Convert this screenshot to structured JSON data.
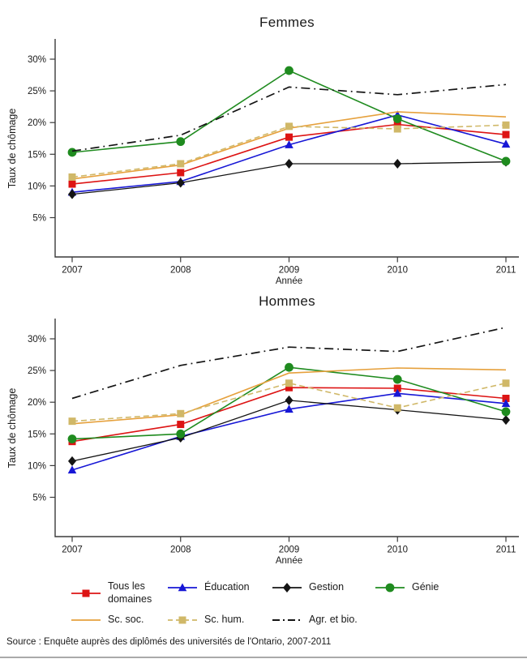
{
  "source_note": "Source : Enquête auprès des diplômés des universités de l'Ontario, 2007-2011",
  "colors": {
    "red": "#dd1414",
    "blue": "#1717d6",
    "black": "#141414",
    "green": "#1f8b1f",
    "orange": "#e6a13d",
    "tan": "#d0b868",
    "axis": "#3a3a3a"
  },
  "chart_data": [
    {
      "type": "line",
      "title": "Femmes",
      "xlabel": "Année",
      "ylabel": "Taux de chômage",
      "x": [
        2007,
        2008,
        2009,
        2010,
        2011
      ],
      "y_ticks": [
        5,
        10,
        15,
        20,
        25,
        30
      ],
      "y_tick_suffix": "%",
      "ylim": [
        0,
        33
      ],
      "grid": false,
      "legend_position": "bottom",
      "series": [
        {
          "name": "Tous les domaines",
          "color_key": "red",
          "marker": "square",
          "dash": "solid",
          "values": [
            10.3,
            12.1,
            17.7,
            19.7,
            18.1
          ]
        },
        {
          "name": "Éducation",
          "color_key": "blue",
          "marker": "triangle",
          "dash": "solid",
          "values": [
            9.0,
            10.7,
            16.5,
            21.2,
            16.6
          ]
        },
        {
          "name": "Gestion",
          "color_key": "black",
          "marker": "diamond",
          "dash": "solid",
          "values": [
            8.7,
            10.5,
            13.5,
            13.5,
            13.8
          ]
        },
        {
          "name": "Génie",
          "color_key": "green",
          "marker": "circle",
          "dash": "solid",
          "values": [
            15.3,
            17.0,
            28.2,
            20.6,
            13.9
          ]
        },
        {
          "name": "Sc. soc.",
          "color_key": "orange",
          "marker": "none",
          "dash": "solid",
          "values": [
            11.1,
            13.3,
            19.1,
            21.7,
            20.9
          ]
        },
        {
          "name": "Sc. hum.",
          "color_key": "tan",
          "marker": "square",
          "dash": "dashed",
          "values": [
            11.4,
            13.5,
            19.4,
            19.0,
            19.6
          ]
        },
        {
          "name": "Agr. et bio.",
          "color_key": "black",
          "marker": "none",
          "dash": "dashdot",
          "values": [
            15.5,
            18.0,
            25.6,
            24.4,
            26.0
          ]
        }
      ]
    },
    {
      "type": "line",
      "title": "Hommes",
      "xlabel": "Année",
      "ylabel": "Taux de chômage",
      "x": [
        2007,
        2008,
        2009,
        2010,
        2011
      ],
      "y_ticks": [
        5,
        10,
        15,
        20,
        25,
        30
      ],
      "y_tick_suffix": "%",
      "ylim": [
        0,
        33
      ],
      "grid": false,
      "legend_position": "bottom",
      "series": [
        {
          "name": "Tous les domaines",
          "color_key": "red",
          "marker": "square",
          "dash": "solid",
          "values": [
            13.8,
            16.5,
            22.3,
            22.2,
            20.6
          ]
        },
        {
          "name": "Éducation",
          "color_key": "blue",
          "marker": "triangle",
          "dash": "solid",
          "values": [
            9.3,
            14.6,
            18.9,
            21.4,
            19.8
          ]
        },
        {
          "name": "Gestion",
          "color_key": "black",
          "marker": "diamond",
          "dash": "solid",
          "values": [
            10.7,
            14.4,
            20.3,
            18.8,
            17.2
          ]
        },
        {
          "name": "Génie",
          "color_key": "green",
          "marker": "circle",
          "dash": "solid",
          "values": [
            14.2,
            15.0,
            25.5,
            23.6,
            18.5
          ]
        },
        {
          "name": "Sc. soc.",
          "color_key": "orange",
          "marker": "none",
          "dash": "solid",
          "values": [
            16.6,
            18.0,
            24.6,
            25.4,
            25.1
          ]
        },
        {
          "name": "Sc. hum.",
          "color_key": "tan",
          "marker": "square",
          "dash": "dashed",
          "values": [
            17.0,
            18.2,
            23.0,
            19.1,
            23.0
          ]
        },
        {
          "name": "Agr. et bio.",
          "color_key": "black",
          "marker": "none",
          "dash": "dashdot",
          "values": [
            20.6,
            25.8,
            28.7,
            28.0,
            31.8
          ]
        }
      ]
    }
  ],
  "legend": {
    "rows": [
      [
        {
          "label": "Tous les domaines",
          "color_key": "red",
          "marker": "square",
          "dash": "solid"
        },
        {
          "label": "Éducation",
          "color_key": "blue",
          "marker": "triangle",
          "dash": "solid"
        },
        {
          "label": "Gestion",
          "color_key": "black",
          "marker": "diamond",
          "dash": "solid"
        },
        {
          "label": "Génie",
          "color_key": "green",
          "marker": "circle",
          "dash": "solid"
        }
      ],
      [
        {
          "label": "Sc. soc.",
          "color_key": "orange",
          "marker": "none",
          "dash": "solid"
        },
        {
          "label": "Sc. hum.",
          "color_key": "tan",
          "marker": "square",
          "dash": "dashed"
        },
        {
          "label": "Agr. et bio.",
          "color_key": "black",
          "marker": "none",
          "dash": "dashdot"
        }
      ]
    ]
  }
}
